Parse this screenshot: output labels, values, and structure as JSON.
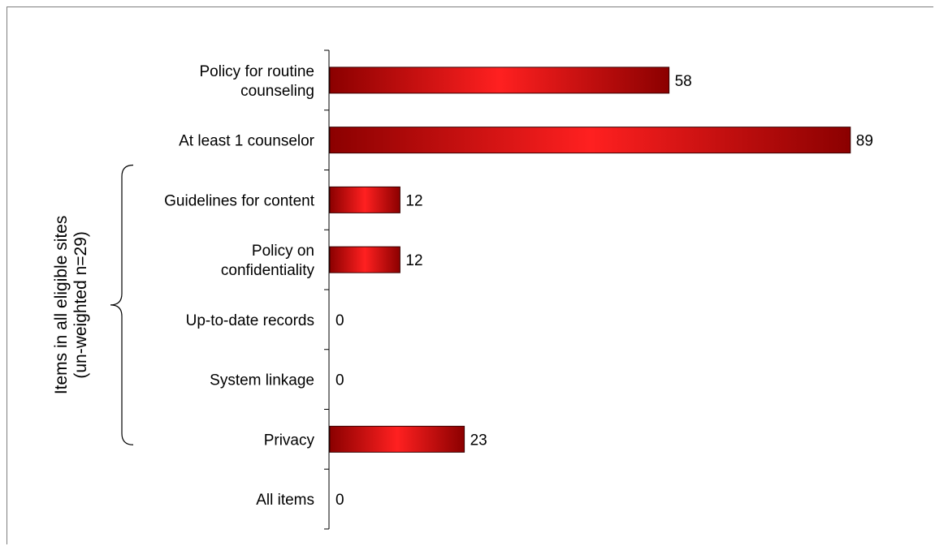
{
  "chart_data": {
    "type": "bar",
    "orientation": "horizontal",
    "categories": [
      "Policy for routine counseling",
      "At least 1 counselor",
      "Guidelines for content",
      "Policy on confidentiality",
      "Up-to-date records",
      "System linkage",
      "Privacy",
      "All items"
    ],
    "category_lines": [
      [
        "Policy for routine",
        "counseling"
      ],
      [
        "At least 1 counselor"
      ],
      [
        "Guidelines for content"
      ],
      [
        "Policy on",
        "confidentiality"
      ],
      [
        "Up-to-date records"
      ],
      [
        "System linkage"
      ],
      [
        "Privacy"
      ],
      [
        "All items"
      ]
    ],
    "values": [
      58,
      89,
      12,
      12,
      0,
      0,
      23,
      0
    ],
    "value_labels": [
      "58",
      "89",
      "12",
      "12",
      "0",
      "0",
      "23",
      "0"
    ],
    "xlim": [
      0,
      100
    ],
    "grid": false,
    "bar_color": "#c00000",
    "bar_highlight_color": "#ff2020",
    "bar_dark_color": "#8b0000",
    "group": {
      "label_lines": [
        "Items in all eligible sites",
        "(un-weighted n=29)"
      ],
      "first_category_index": 2,
      "last_category_index": 6
    }
  }
}
